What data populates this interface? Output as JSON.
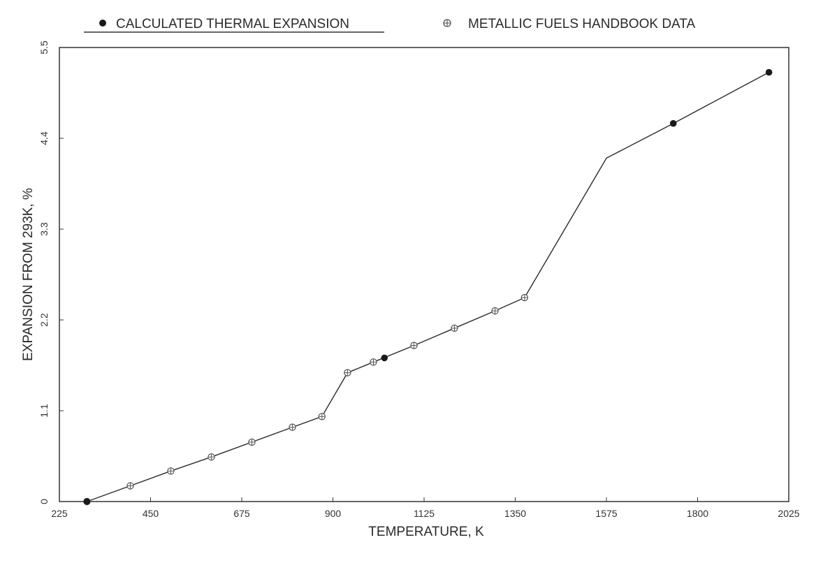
{
  "chart_data": {
    "type": "line",
    "xlabel": "TEMPERATURE, K",
    "ylabel": "EXPANSION FROM 293K, %",
    "xlim": [
      225,
      2025
    ],
    "ylim": [
      0,
      5.5
    ],
    "x_ticks": [
      "225",
      "450",
      "675",
      "900",
      "1125",
      "1350",
      "1575",
      "1800",
      "2025"
    ],
    "y_ticks": [
      "0",
      "1.1",
      "2.2",
      "3.3",
      "4.4",
      "5.5"
    ],
    "grid": false,
    "legend_position": "top",
    "line": {
      "x": [
        293,
        400,
        500,
        600,
        700,
        800,
        873,
        936,
        1000,
        1100,
        1200,
        1300,
        1373,
        1575,
        1740,
        1976
      ],
      "y": [
        0,
        0.19,
        0.37,
        0.54,
        0.72,
        0.9,
        1.03,
        1.56,
        1.69,
        1.89,
        2.1,
        2.31,
        2.47,
        4.16,
        4.58,
        5.2
      ]
    },
    "series": [
      {
        "name": "CALCULATED THERMAL EXPANSION",
        "marker": "filled-circle",
        "color": "#1a1a1a",
        "x": [
          293,
          1027,
          1740,
          1976
        ],
        "y": [
          0,
          1.74,
          4.58,
          5.2
        ]
      },
      {
        "name": "METALLIC FUELS HANDBOOK DATA",
        "marker": "circle-cross",
        "color": "#555555",
        "x": [
          293,
          400,
          500,
          600,
          700,
          800,
          873,
          936,
          1000,
          1100,
          1200,
          1300,
          1373
        ],
        "y": [
          0,
          0.19,
          0.37,
          0.54,
          0.72,
          0.9,
          1.03,
          1.56,
          1.69,
          1.89,
          2.1,
          2.31,
          2.47
        ]
      }
    ]
  }
}
